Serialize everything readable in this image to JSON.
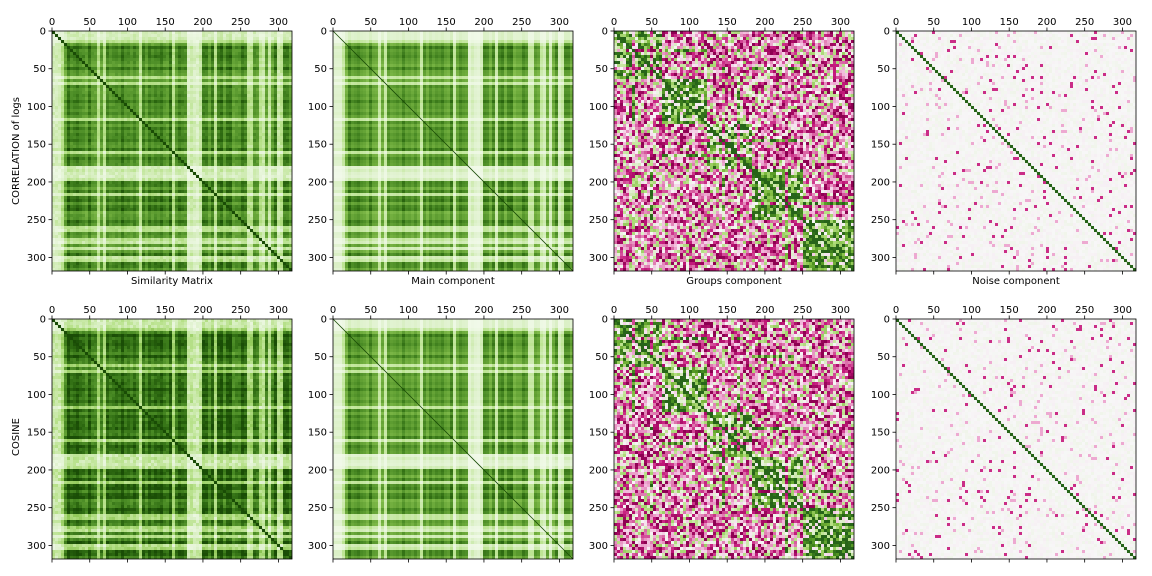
{
  "figure": {
    "row_labels": [
      "CORRELATION of logs",
      "COSINE"
    ],
    "column_titles": [
      "Similarity Matrix",
      "Main component",
      "Groups component",
      "Noise component"
    ]
  },
  "axis": {
    "range": [
      0,
      318
    ],
    "x_ticks": [
      0,
      50,
      100,
      150,
      200,
      250,
      300
    ],
    "y_ticks": [
      0,
      50,
      100,
      150,
      200,
      250,
      300
    ]
  },
  "colormaps": {
    "green": [
      "#f5fbef",
      "#e0f2cf",
      "#b9e28d",
      "#8fc756",
      "#6ba93a",
      "#4c8d26",
      "#2f6c12",
      "#1a4d06"
    ],
    "diverging": [
      "#8e0152",
      "#c51b7d",
      "#de77ae",
      "#f1b6da",
      "#f7f7f7",
      "#b8e186",
      "#7fbc41",
      "#4d9221",
      "#276419"
    ]
  },
  "chart_data": [
    {
      "type": "heatmap",
      "row": "CORRELATION of logs",
      "xlabel": "Similarity Matrix",
      "colormap": "green",
      "pattern": "similarity",
      "size": 318
    },
    {
      "type": "heatmap",
      "row": "CORRELATION of logs",
      "xlabel": "Main component",
      "colormap": "green",
      "pattern": "main",
      "size": 318
    },
    {
      "type": "heatmap",
      "row": "CORRELATION of logs",
      "xlabel": "Groups component",
      "colormap": "diverging",
      "pattern": "groups",
      "size": 318
    },
    {
      "type": "heatmap",
      "row": "CORRELATION of logs",
      "xlabel": "Noise component",
      "colormap": "diverging",
      "pattern": "noise",
      "size": 318
    },
    {
      "type": "heatmap",
      "row": "COSINE",
      "xlabel": "",
      "colormap": "green",
      "pattern": "similarity-dark",
      "size": 318
    },
    {
      "type": "heatmap",
      "row": "COSINE",
      "xlabel": "",
      "colormap": "green",
      "pattern": "main",
      "size": 318
    },
    {
      "type": "heatmap",
      "row": "COSINE",
      "xlabel": "",
      "colormap": "diverging",
      "pattern": "groups",
      "size": 318
    },
    {
      "type": "heatmap",
      "row": "COSINE",
      "xlabel": "",
      "colormap": "diverging",
      "pattern": "noise",
      "size": 318
    }
  ]
}
